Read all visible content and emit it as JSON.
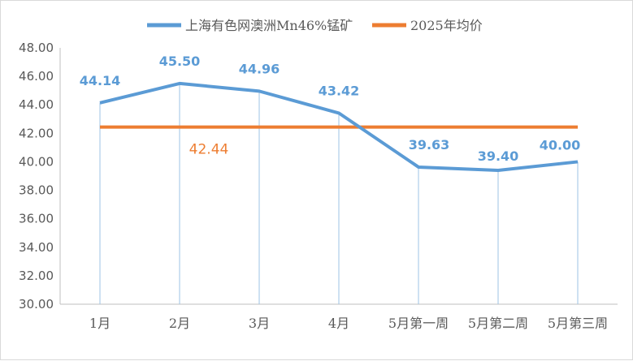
{
  "chart_data": {
    "type": "line",
    "title": "",
    "xlabel": "",
    "ylabel": "",
    "categories": [
      "1月",
      "2月",
      "3月",
      "4月",
      "5月第一周",
      "5月第二周",
      "5月第三周"
    ],
    "ylim": [
      30.0,
      48.0
    ],
    "yticks": [
      "30.00",
      "32.00",
      "34.00",
      "36.00",
      "38.00",
      "40.00",
      "42.00",
      "44.00",
      "46.00",
      "48.00"
    ],
    "grid": false,
    "legend_position": "top",
    "series": [
      {
        "name": "上海有色网澳洲Mn46%锰矿",
        "color": "#5b9bd5",
        "values": [
          44.14,
          45.5,
          44.96,
          43.42,
          39.63,
          39.4,
          40.0
        ],
        "labels": [
          "44.14",
          "45.50",
          "44.96",
          "43.42",
          "39.63",
          "39.40",
          "40.00"
        ]
      },
      {
        "name": "2025年均价",
        "color": "#ed7d31",
        "values": [
          42.44,
          42.44,
          42.44,
          42.44,
          42.44,
          42.44,
          42.44
        ],
        "labels": [
          "42.44"
        ]
      }
    ]
  }
}
